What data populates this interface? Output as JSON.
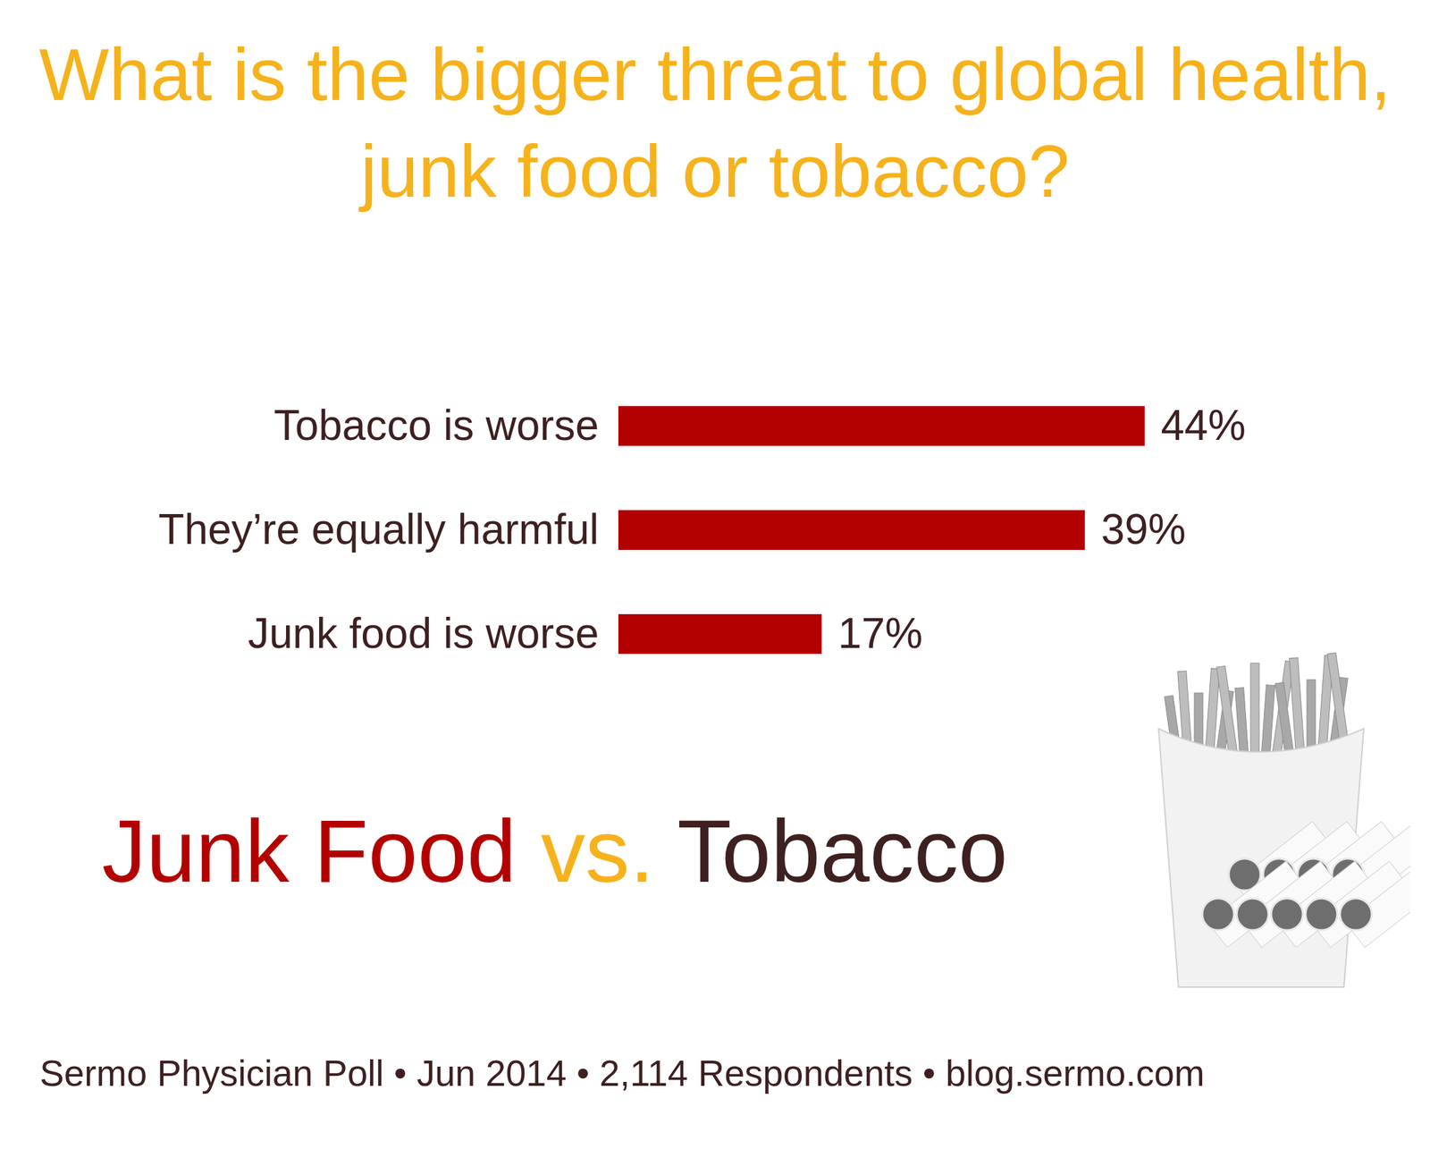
{
  "chart_data": {
    "type": "bar",
    "title": "What is the bigger threat to global health, junk food or tobacco?",
    "categories": [
      "Tobacco is worse",
      "They’re equally harmful",
      "Junk food is worse"
    ],
    "values": [
      44,
      39,
      17
    ],
    "value_labels": [
      "44%",
      "39%",
      "17%"
    ],
    "color": "#b30000",
    "orientation": "horizontal",
    "data_labels": true,
    "tick_labels": "y",
    "annotation": [
      "Junk Food",
      "vs.",
      "Tobacco"
    ],
    "caption": "Sermo Physician Poll • Jun 2014 • 2,114 Respondents • blog.sermo.com"
  }
}
